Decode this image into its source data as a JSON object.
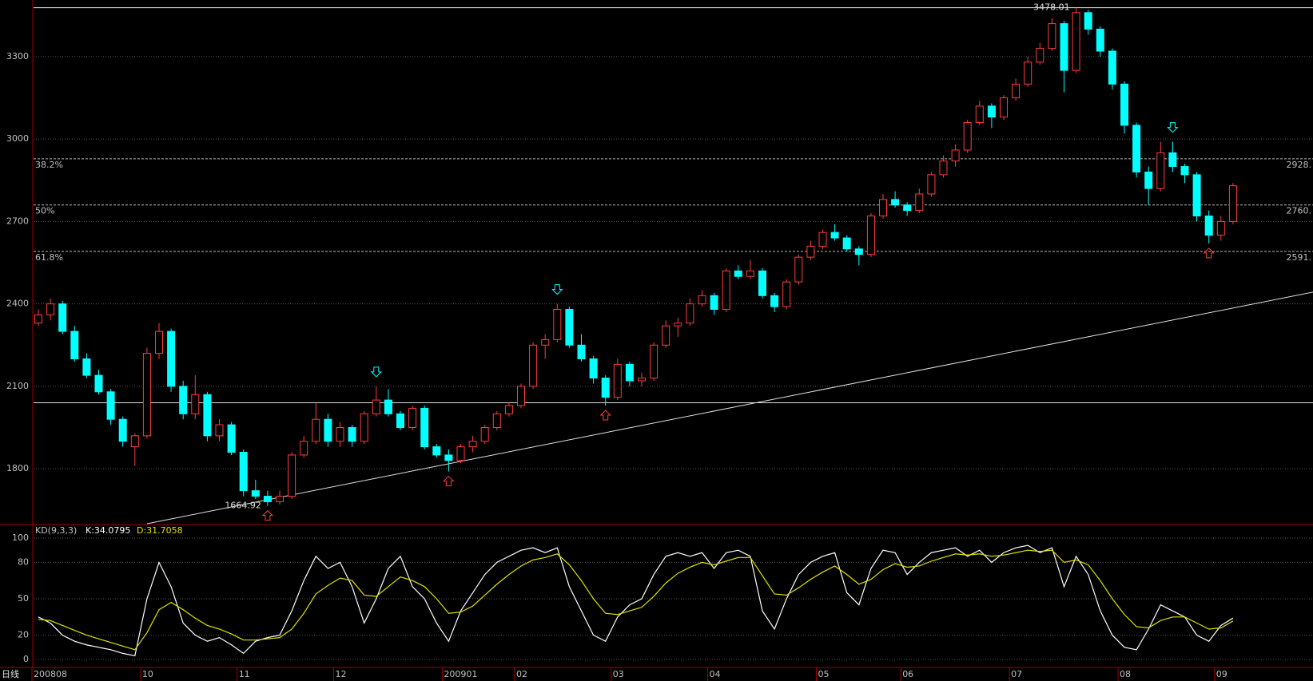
{
  "chart_data": [
    {
      "type": "candlestick",
      "period_label": "日线",
      "categories": [
        "200808",
        null,
        null,
        null,
        null,
        null,
        null,
        null,
        null,
        "10",
        null,
        null,
        null,
        null,
        null,
        null,
        null,
        "11",
        null,
        null,
        null,
        null,
        null,
        null,
        null,
        "12",
        null,
        null,
        null,
        null,
        null,
        null,
        null,
        null,
        "200901",
        null,
        null,
        null,
        null,
        null,
        "02",
        null,
        null,
        null,
        null,
        null,
        null,
        null,
        "03",
        null,
        null,
        null,
        null,
        null,
        null,
        null,
        "04",
        null,
        null,
        null,
        null,
        null,
        null,
        null,
        null,
        "05",
        null,
        null,
        null,
        null,
        null,
        null,
        "06",
        null,
        null,
        null,
        null,
        null,
        null,
        null,
        null,
        "07",
        null,
        null,
        null,
        null,
        null,
        null,
        null,
        null,
        "08",
        null,
        null,
        null,
        null,
        null,
        null,
        null,
        "09",
        null
      ],
      "open": [
        2330,
        2360,
        2400,
        2300,
        2200,
        2140,
        2080,
        1980,
        1880,
        1920,
        2220,
        2300,
        2100,
        2000,
        2070,
        1920,
        1960,
        1860,
        1720,
        1700,
        1680,
        1700,
        1850,
        1900,
        1980,
        1900,
        1950,
        1900,
        2000,
        2050,
        2000,
        1950,
        2020,
        1880,
        1850,
        1830,
        1880,
        1900,
        1950,
        2000,
        2030,
        2100,
        2250,
        2270,
        2380,
        2250,
        2200,
        2130,
        2060,
        2180,
        2120,
        2130,
        2250,
        2320,
        2330,
        2400,
        2430,
        2380,
        2520,
        2500,
        2520,
        2430,
        2390,
        2480,
        2570,
        2610,
        2660,
        2640,
        2600,
        2580,
        2720,
        2780,
        2760,
        2740,
        2800,
        2870,
        2920,
        2960,
        3060,
        3120,
        3080,
        3150,
        3200,
        3280,
        3330,
        3420,
        3250,
        3460,
        3400,
        3320,
        3200,
        3050,
        2880,
        2820,
        2950,
        2900,
        2870,
        2720,
        2650,
        2700
      ],
      "high": [
        2380,
        2420,
        2410,
        2320,
        2220,
        2160,
        2090,
        1990,
        1930,
        2240,
        2330,
        2310,
        2120,
        2140,
        2080,
        1980,
        1970,
        1870,
        1760,
        1720,
        1720,
        1860,
        1920,
        2040,
        2000,
        1970,
        1960,
        2010,
        2100,
        2090,
        2010,
        2030,
        2030,
        1890,
        1870,
        1890,
        1920,
        1960,
        2010,
        2040,
        2110,
        2260,
        2290,
        2400,
        2390,
        2290,
        2210,
        2140,
        2200,
        2190,
        2150,
        2260,
        2340,
        2350,
        2420,
        2450,
        2440,
        2530,
        2540,
        2560,
        2530,
        2440,
        2490,
        2580,
        2630,
        2670,
        2690,
        2650,
        2610,
        2730,
        2800,
        2810,
        2770,
        2820,
        2880,
        2940,
        2980,
        3070,
        3140,
        3130,
        3160,
        3220,
        3300,
        3350,
        3440,
        3430,
        3478.01,
        3470,
        3410,
        3330,
        3210,
        3060,
        2900,
        2990,
        2990,
        2910,
        2880,
        2740,
        2720,
        2840
      ],
      "low": [
        2320,
        2340,
        2290,
        2190,
        2130,
        2070,
        1960,
        1880,
        1810,
        1910,
        2200,
        2080,
        1980,
        1980,
        1900,
        1900,
        1850,
        1700,
        1690,
        1664.92,
        1670,
        1690,
        1840,
        1890,
        1880,
        1880,
        1880,
        1890,
        1990,
        1990,
        1940,
        1940,
        1870,
        1840,
        1790,
        1820,
        1860,
        1890,
        1940,
        1990,
        2020,
        2090,
        2200,
        2260,
        2240,
        2190,
        2110,
        2030,
        2050,
        2100,
        2100,
        2120,
        2240,
        2280,
        2320,
        2390,
        2360,
        2370,
        2490,
        2490,
        2420,
        2370,
        2380,
        2470,
        2560,
        2600,
        2630,
        2590,
        2540,
        2570,
        2710,
        2750,
        2720,
        2730,
        2790,
        2860,
        2900,
        2950,
        3050,
        3040,
        3070,
        3140,
        3190,
        3270,
        3320,
        3170,
        3240,
        3380,
        3300,
        3180,
        3020,
        2860,
        2760,
        2810,
        2880,
        2840,
        2700,
        2620,
        2630,
        2690
      ],
      "close": [
        2360,
        2400,
        2300,
        2200,
        2140,
        2080,
        1980,
        1900,
        1920,
        2220,
        2300,
        2100,
        2000,
        2070,
        1920,
        1960,
        1860,
        1720,
        1700,
        1680,
        1700,
        1850,
        1900,
        1980,
        1900,
        1950,
        1900,
        2000,
        2050,
        2000,
        1950,
        2020,
        1880,
        1850,
        1830,
        1880,
        1900,
        1950,
        2000,
        2030,
        2100,
        2250,
        2270,
        2380,
        2250,
        2200,
        2130,
        2060,
        2180,
        2120,
        2130,
        2250,
        2320,
        2330,
        2400,
        2430,
        2380,
        2520,
        2500,
        2520,
        2430,
        2390,
        2480,
        2570,
        2610,
        2660,
        2640,
        2600,
        2580,
        2720,
        2780,
        2760,
        2740,
        2800,
        2870,
        2920,
        2960,
        3060,
        3120,
        3080,
        3150,
        3200,
        3280,
        3330,
        3420,
        3250,
        3460,
        3400,
        3320,
        3200,
        3050,
        2880,
        2820,
        2950,
        2900,
        2870,
        2720,
        2650,
        2700,
        2830
      ],
      "up_color": "#ff3c3c",
      "down_color": "#00ffff",
      "ylim": [
        1597,
        3506
      ],
      "yticks": [
        1800,
        2100,
        2400,
        2700,
        3000,
        3300
      ],
      "grid": true,
      "max_label": 3478.01,
      "min_label": 1664.92,
      "h_lines": [
        3478.01,
        2040
      ],
      "fib_levels": [
        {
          "label": "38.2%",
          "value": 2928,
          "value_label": "2928."
        },
        {
          "label": "50%",
          "value": 2760,
          "value_label": "2760."
        },
        {
          "label": "61.8%",
          "value": 2591,
          "value_label": "2591."
        }
      ],
      "trend_line": {
        "x": [
          9,
          106
        ],
        "y": [
          1600,
          2446
        ]
      },
      "buy_signals": [
        19,
        34,
        47,
        97
      ],
      "sell_signals": [
        28,
        43,
        94
      ]
    },
    {
      "type": "line",
      "title": "KD(9,3,3)",
      "header_labels": [
        "K:34.0795",
        "D:31.7058"
      ],
      "series": [
        {
          "name": "K",
          "color": "#ffffff",
          "values": [
            35,
            30,
            20,
            15,
            12,
            10,
            8,
            5,
            3,
            50,
            80,
            60,
            30,
            20,
            15,
            18,
            12,
            5,
            15,
            18,
            20,
            40,
            65,
            85,
            75,
            80,
            60,
            30,
            50,
            75,
            85,
            60,
            50,
            30,
            15,
            40,
            55,
            70,
            80,
            85,
            90,
            92,
            88,
            92,
            60,
            40,
            20,
            15,
            35,
            45,
            50,
            70,
            85,
            88,
            85,
            88,
            75,
            88,
            90,
            85,
            40,
            25,
            50,
            70,
            80,
            85,
            88,
            55,
            45,
            75,
            90,
            88,
            70,
            80,
            88,
            90,
            92,
            85,
            90,
            80,
            88,
            92,
            94,
            88,
            92,
            60,
            85,
            70,
            40,
            20,
            10,
            8,
            25,
            45,
            40,
            35,
            20,
            15,
            28,
            34.0795
          ]
        },
        {
          "name": "D",
          "color": "#e0e000",
          "values": [
            33,
            32,
            28,
            24,
            20,
            17,
            14,
            11,
            8,
            22,
            41,
            47,
            41,
            34,
            28,
            25,
            21,
            16,
            16,
            17,
            18,
            25,
            38,
            54,
            61,
            67,
            65,
            53,
            52,
            60,
            68,
            65,
            60,
            50,
            38,
            39,
            44,
            53,
            62,
            70,
            77,
            82,
            84,
            87,
            78,
            65,
            50,
            38,
            37,
            40,
            43,
            52,
            63,
            71,
            76,
            80,
            78,
            81,
            84,
            84,
            69,
            54,
            53,
            59,
            66,
            72,
            77,
            70,
            62,
            66,
            74,
            79,
            76,
            77,
            81,
            84,
            87,
            86,
            87,
            85,
            86,
            88,
            90,
            89,
            90,
            80,
            82,
            78,
            65,
            50,
            37,
            27,
            26,
            32,
            35,
            35,
            30,
            25,
            26,
            31.7058
          ]
        }
      ],
      "ylim": [
        0,
        100
      ],
      "yticks": [
        0,
        20,
        50,
        80,
        100
      ],
      "grid": true
    }
  ]
}
